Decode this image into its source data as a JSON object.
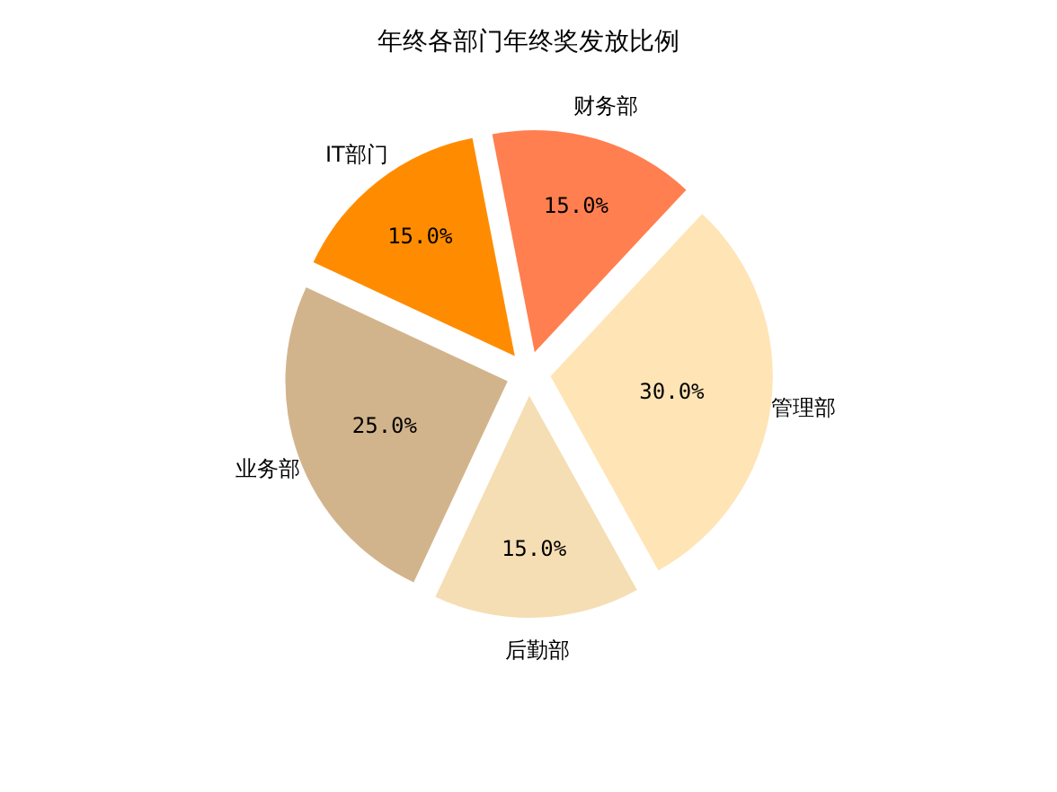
{
  "chart_data": {
    "type": "pie",
    "title": "年终各部门年终奖发放比例",
    "categories": [
      "财务部",
      "管理部",
      "后勤部",
      "业务部",
      "IT部门"
    ],
    "values": [
      15,
      30,
      15,
      25,
      15
    ],
    "value_labels": [
      "15.0%",
      "30.0%",
      "15.0%",
      "25.0%",
      "15.0%"
    ],
    "colors": [
      "#ff7f50",
      "#ffe4b5",
      "#f5deb3",
      "#d2b48c",
      "#ff8c00"
    ],
    "legend": false
  }
}
